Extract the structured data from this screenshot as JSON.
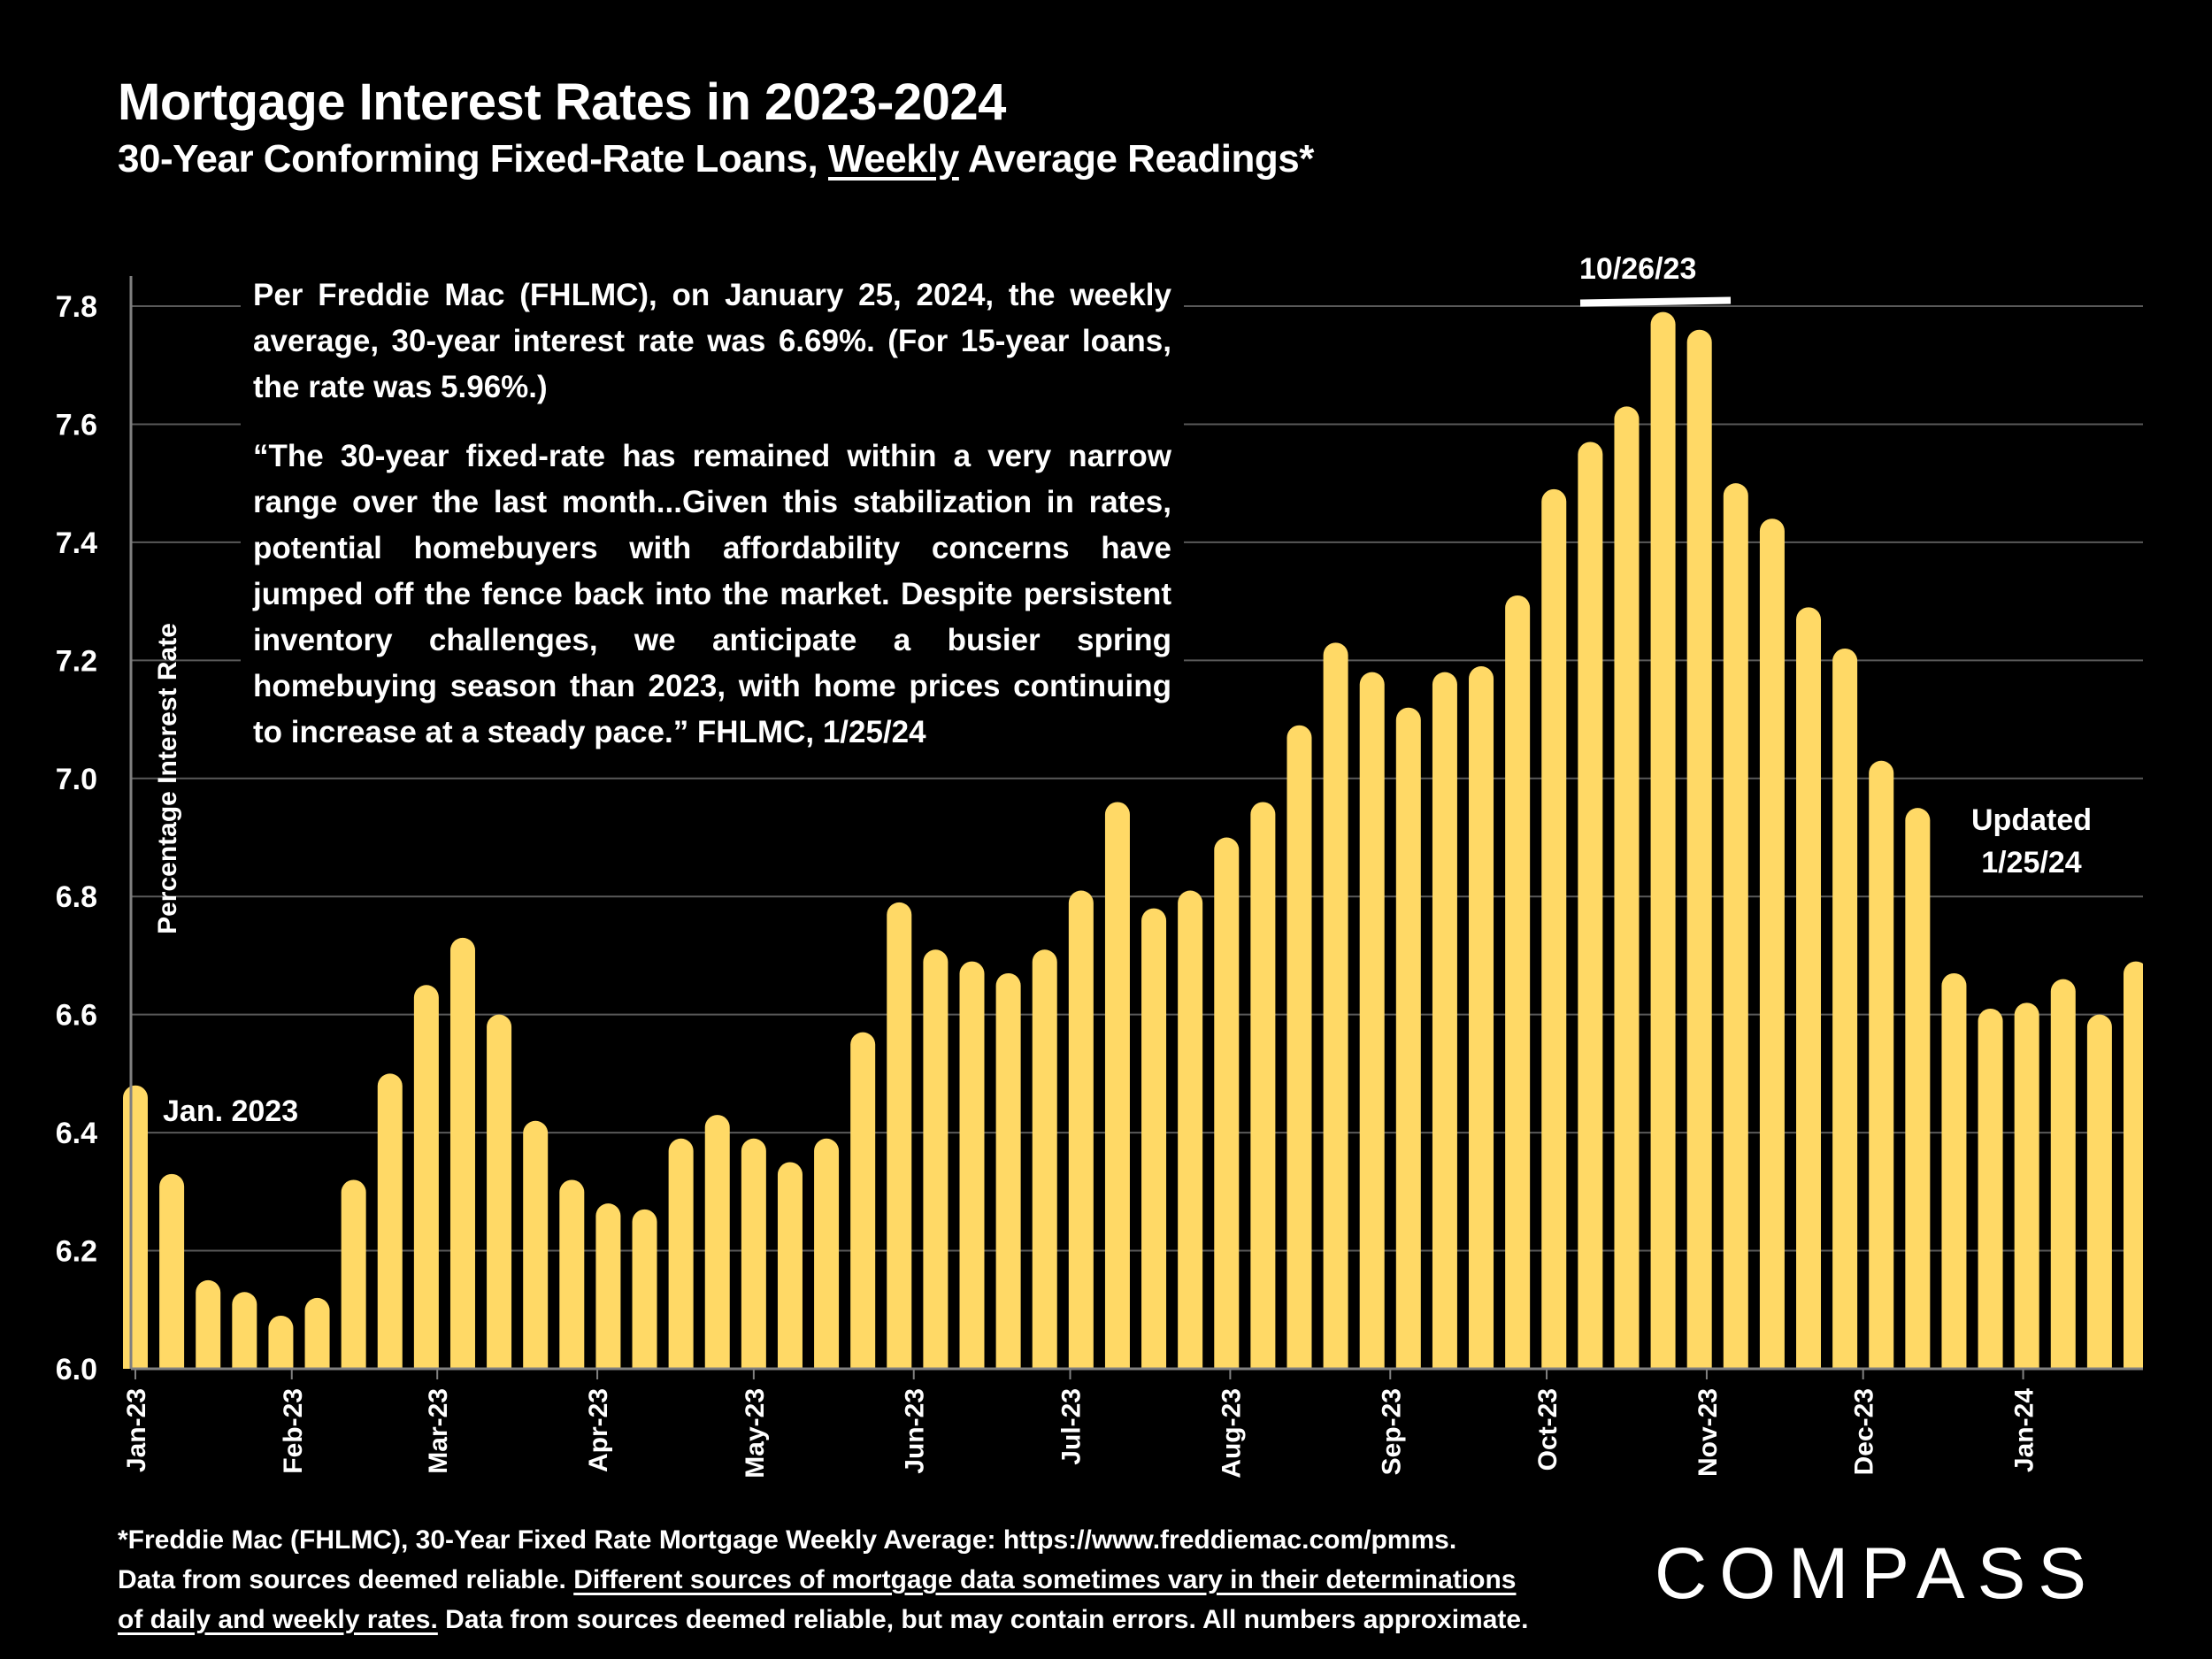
{
  "header": {
    "title": "Mortgage Interest Rates in 2023-2024",
    "subtitle_pre": "30-Year Conforming Fixed-Rate Loans, ",
    "subtitle_underlined": "Weekly",
    "subtitle_post": " Average Readings*"
  },
  "textbox": {
    "summary": "Per Freddie Mac (FHLMC), on January 25, 2024, the weekly average, 30-year interest rate was 6.69%. (For 15-year loans, the rate was 5.96%.)",
    "quote": "“The 30-year fixed-rate has remained within a very narrow range over the last month...Given this stabilization in rates, potential homebuyers with affordability concerns have jumped off the fence back into the market. Despite persistent inventory challenges, we anticipate a busier spring homebuying season than 2023, with home prices continuing to increase at a steady pace.” FHLMC, 1/25/24"
  },
  "annotations": {
    "start": "Jan. 2023",
    "peak": "10/26/23",
    "updated_line1": "Updated",
    "updated_line2": "1/25/24"
  },
  "footer": {
    "line1": "*Freddie Mac (FHLMC), 30-Year Fixed Rate Mortgage Weekly Average:  https://www.freddiemac.com/pmms.",
    "line2_pre": "Data from sources deemed reliable. ",
    "line2_underlined": "Different sources of mortgage data sometimes vary in their determinations",
    "line3_underlined": "of daily and weekly rates.",
    "line3_post": " Data from sources deemed reliable, but may contain errors. All numbers approximate."
  },
  "logo": {
    "text": "COMPASS"
  },
  "colors": {
    "bar": "#FFD966",
    "grid": "#595959",
    "axis": "#808080",
    "background": "#000000",
    "text": "#FFFFFF"
  },
  "chart_data": {
    "type": "bar",
    "title": "Mortgage Interest Rates in 2023-2024",
    "subtitle": "30-Year Conforming Fixed-Rate Loans, Weekly Average Readings*",
    "xlabel": "",
    "ylabel": "Percentage Interest  Rate",
    "ylim": [
      6.0,
      7.8
    ],
    "yticks": [
      6.0,
      6.2,
      6.4,
      6.6,
      6.8,
      7.0,
      7.2,
      7.4,
      7.6,
      7.8
    ],
    "ytick_labels": [
      "6.0",
      "6.2",
      "6.4",
      "6.6",
      "6.8",
      "7.0",
      "7.2",
      "7.4",
      "7.6",
      "7.8"
    ],
    "grid": true,
    "legend": "none",
    "x_month_ticks": [
      {
        "label": "Jan-23",
        "bar_index": 0
      },
      {
        "label": "Feb-23",
        "bar_index": 4.3
      },
      {
        "label": "Mar-23",
        "bar_index": 8.3
      },
      {
        "label": "Apr-23",
        "bar_index": 12.7
      },
      {
        "label": "May-23",
        "bar_index": 17.0
      },
      {
        "label": "Jun-23",
        "bar_index": 21.4
      },
      {
        "label": "Jul-23",
        "bar_index": 25.7
      },
      {
        "label": "Aug-23",
        "bar_index": 30.1
      },
      {
        "label": "Sep-23",
        "bar_index": 34.5
      },
      {
        "label": "Oct-23",
        "bar_index": 38.8
      },
      {
        "label": "Nov-23",
        "bar_index": 43.2
      },
      {
        "label": "Dec-23",
        "bar_index": 47.5
      },
      {
        "label": "Jan-24",
        "bar_index": 51.9
      }
    ],
    "series": [
      {
        "name": "30-Year Fixed Rate (weekly)",
        "values": [
          6.48,
          6.33,
          6.15,
          6.13,
          6.09,
          6.12,
          6.32,
          6.5,
          6.65,
          6.73,
          6.6,
          6.42,
          6.32,
          6.28,
          6.27,
          6.39,
          6.43,
          6.39,
          6.35,
          6.39,
          6.57,
          6.79,
          6.71,
          6.69,
          6.67,
          6.71,
          6.81,
          6.96,
          6.78,
          6.81,
          6.9,
          6.96,
          7.09,
          7.23,
          7.18,
          7.12,
          7.18,
          7.19,
          7.31,
          7.49,
          7.57,
          7.63,
          7.79,
          7.76,
          7.5,
          7.44,
          7.29,
          7.22,
          7.03,
          6.95,
          6.67,
          6.61,
          6.62,
          6.66,
          6.6,
          6.69
        ]
      }
    ],
    "annotations": [
      "Jan. 2023",
      "10/26/23",
      "Updated 1/25/24"
    ]
  }
}
